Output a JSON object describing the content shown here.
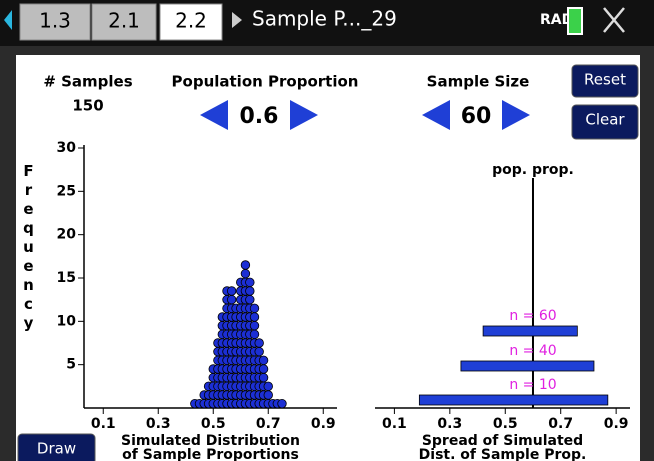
{
  "header": {
    "tabs": [
      "1.3",
      "2.1",
      "2.2"
    ],
    "document_title": "Sample P..._29",
    "angle_mode": "RAD"
  },
  "controls": {
    "samples": {
      "label": "# Samples",
      "value": "150"
    },
    "population_proportion": {
      "label": "Population Proportion",
      "value": "0.6"
    },
    "sample_size": {
      "label": "Sample Size",
      "value": "60"
    },
    "buttons": [
      "Reset",
      "Clear",
      "Draw"
    ]
  },
  "chart_data": [
    {
      "type": "dot",
      "y_label": "Frequency",
      "x_label": [
        "Simulated Distribution",
        "of Sample Proportions"
      ],
      "x": [
        0.433,
        0.45,
        0.467,
        0.483,
        0.5,
        0.517,
        0.533,
        0.55,
        0.567,
        0.583,
        0.6,
        0.617,
        0.633,
        0.65,
        0.667,
        0.683,
        0.7,
        0.717,
        0.733,
        0.75
      ],
      "values": [
        1,
        1,
        2,
        3,
        5,
        8,
        11,
        14,
        14,
        12,
        15,
        17,
        15,
        12,
        8,
        6,
        3,
        1,
        1,
        1
      ],
      "color": "#1c2fd4",
      "xlim": [
        0.03,
        0.95
      ],
      "xticks": [
        0.1,
        0.3,
        0.5,
        0.7,
        0.9
      ],
      "ylim": [
        0,
        30
      ],
      "yticks": [
        5,
        10,
        15,
        20,
        25,
        30
      ]
    },
    {
      "type": "range",
      "reference_label": "pop. prop.",
      "reference": 0.6,
      "x_label": [
        "Spread of Simulated",
        "Dist. of Sample Prop."
      ],
      "categories": [
        "n = 10",
        "n = 40",
        "n = 60"
      ],
      "low": [
        0.19,
        0.34,
        0.42
      ],
      "high": [
        0.87,
        0.82,
        0.76
      ],
      "color": "#1f3fd6",
      "label_color": "#e020e0",
      "xlim": [
        0.03,
        0.95
      ],
      "xticks": [
        0.1,
        0.3,
        0.5,
        0.7,
        0.9
      ]
    }
  ]
}
